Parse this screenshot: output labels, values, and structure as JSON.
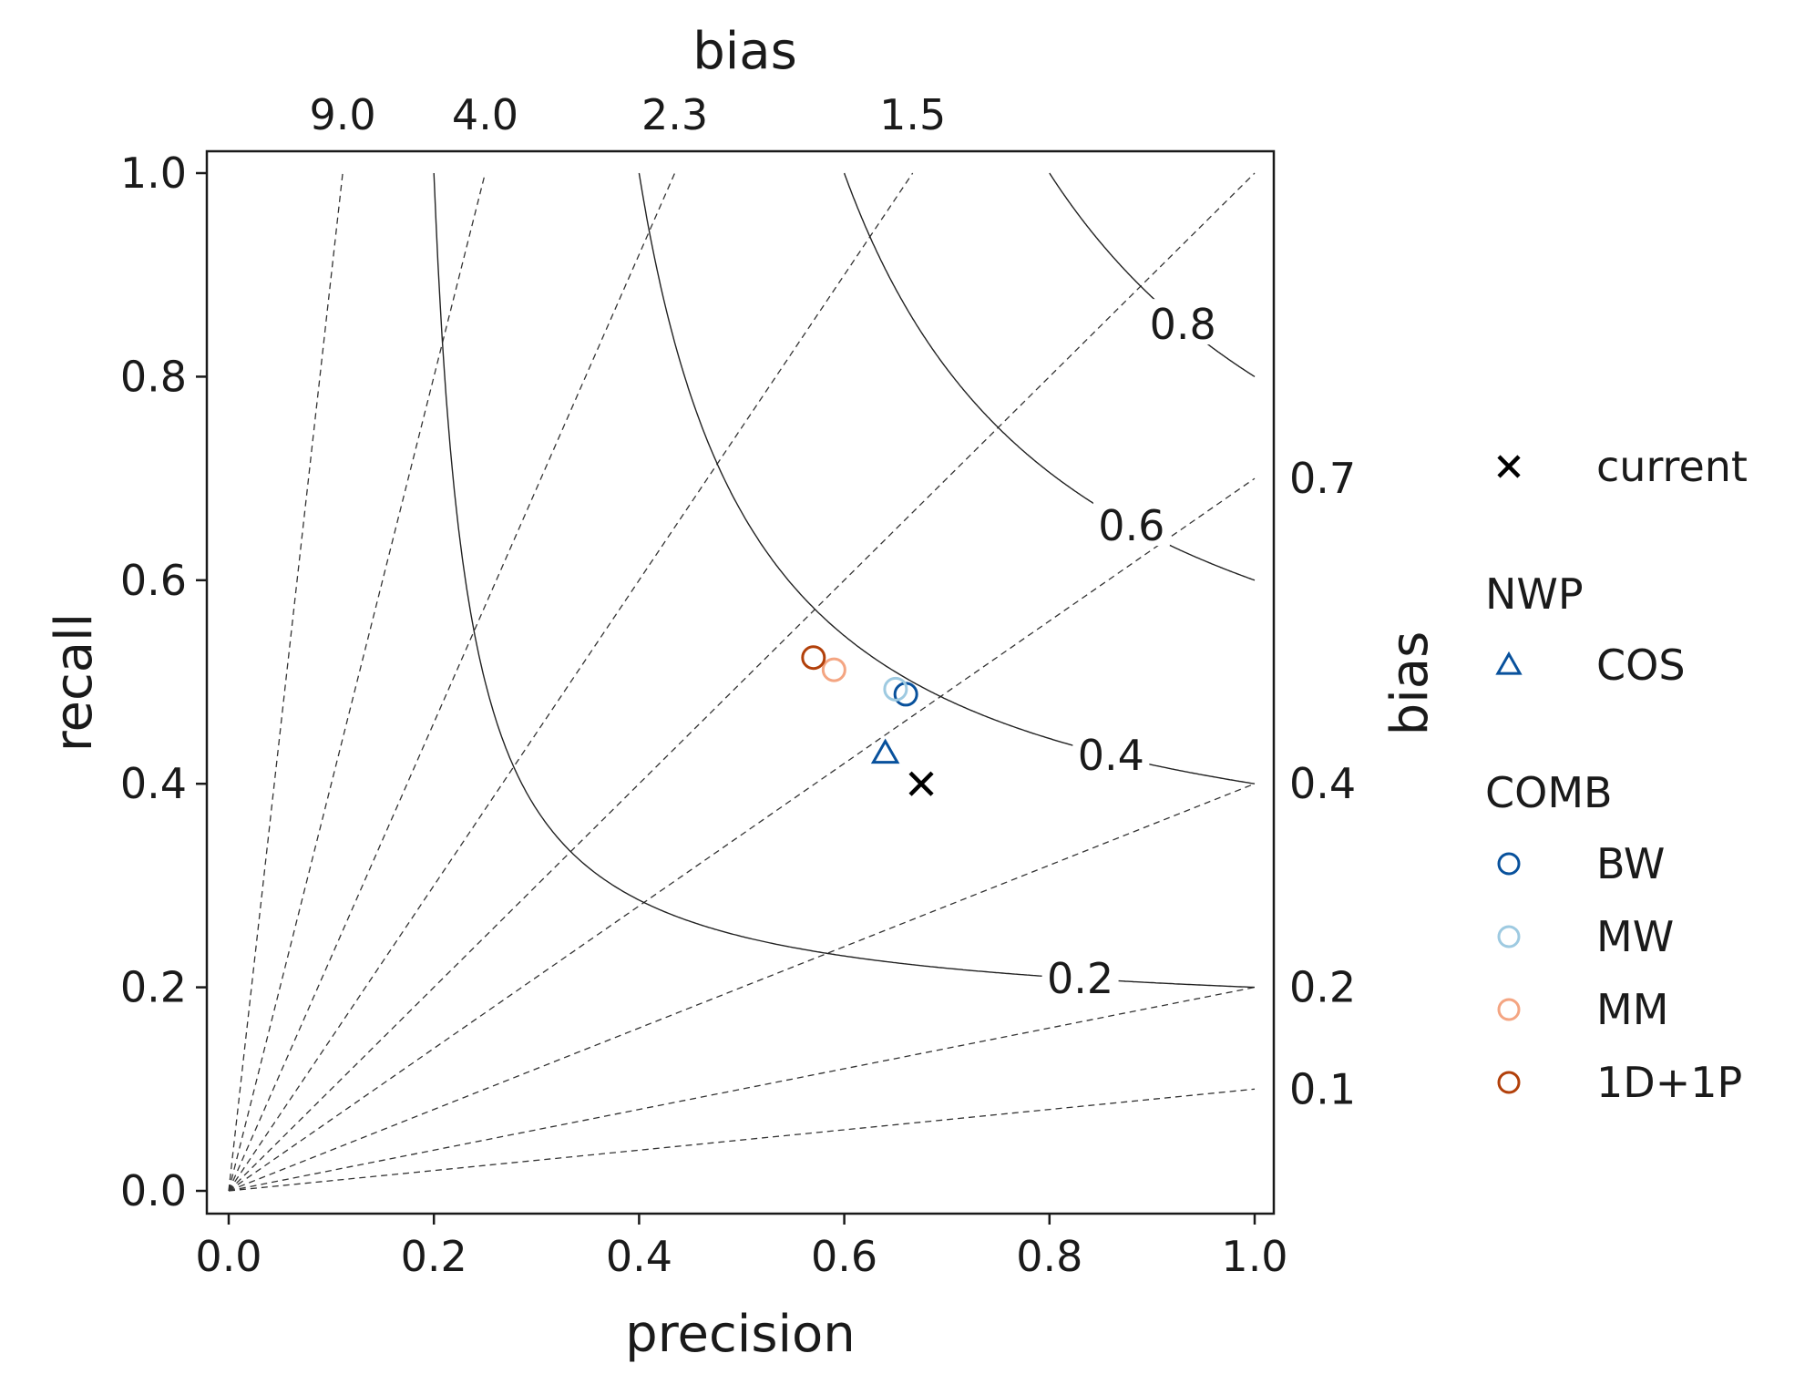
{
  "chart_data": {
    "type": "scatter",
    "subtype": "performance-diagram",
    "xlabel": "precision",
    "ylabel": "recall",
    "top_axis_label": "bias",
    "right_axis_label": "bias",
    "xlim": [
      0.0,
      1.0
    ],
    "ylim": [
      0.0,
      1.0
    ],
    "x_ticks": [
      "0.0",
      "0.2",
      "0.4",
      "0.6",
      "0.8",
      "1.0"
    ],
    "y_ticks": [
      "0.0",
      "0.2",
      "0.4",
      "0.6",
      "0.8",
      "1.0"
    ],
    "bias_lines": [
      9.0,
      4.0,
      2.3,
      1.5,
      1.0,
      0.7,
      0.4,
      0.2,
      0.1
    ],
    "top_bias_ticks": [
      "9.0",
      "4.0",
      "2.3",
      "1.5"
    ],
    "right_bias_ticks": [
      "0.7",
      "0.4",
      "0.2",
      "0.1"
    ],
    "csi_contours": [
      {
        "value": 0.2,
        "label": "0.2"
      },
      {
        "value": 0.4,
        "label": "0.4"
      },
      {
        "value": 0.6,
        "label": "0.6"
      },
      {
        "value": 0.8,
        "label": "0.8"
      }
    ],
    "series": [
      {
        "name": "current",
        "group": "",
        "marker": "x",
        "color": "#000000",
        "x": 0.675,
        "y": 0.4
      },
      {
        "name": "COS",
        "group": "NWP",
        "marker": "triangle",
        "color": "#08519c",
        "x": 0.64,
        "y": 0.43
      },
      {
        "name": "BW",
        "group": "COMB",
        "marker": "circle",
        "color": "#08519c",
        "x": 0.66,
        "y": 0.488
      },
      {
        "name": "MW",
        "group": "COMB",
        "marker": "circle",
        "color": "#9ecae1",
        "x": 0.65,
        "y": 0.493
      },
      {
        "name": "MM",
        "group": "COMB",
        "marker": "circle",
        "color": "#f4a582",
        "x": 0.59,
        "y": 0.512
      },
      {
        "name": "1D+1P",
        "group": "COMB",
        "marker": "circle",
        "color": "#b2400a",
        "x": 0.57,
        "y": 0.524
      }
    ],
    "legend": {
      "placement": "right",
      "groups": [
        {
          "title": "",
          "items": [
            "current"
          ]
        },
        {
          "title": "NWP",
          "items": [
            "COS"
          ]
        },
        {
          "title": "COMB",
          "items": [
            "BW",
            "MW",
            "MM",
            "1D+1P"
          ]
        }
      ]
    }
  }
}
